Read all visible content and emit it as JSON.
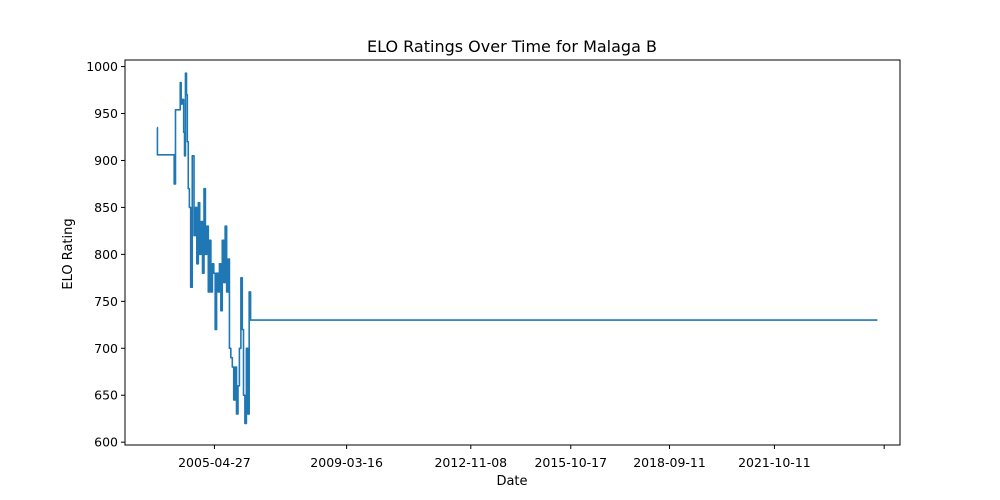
{
  "chart_data": {
    "type": "line",
    "title": "ELO Ratings Over Time for Malaga B",
    "xlabel": "Date",
    "ylabel": "ELO Rating",
    "x_tick_labels": [
      "2005-04-27",
      "2009-03-16",
      "2012-11-08",
      "2015-10-17",
      "2018-09-11",
      "2021-10-11",
      ""
    ],
    "x_tick_dates": [
      "2005-04-27",
      "2009-03-16",
      "2012-11-08",
      "2015-10-17",
      "2018-09-11",
      "2021-10-11",
      "2025-01-01"
    ],
    "y_ticks": [
      600,
      650,
      700,
      750,
      800,
      850,
      900,
      950,
      1000
    ],
    "xlim": [
      "2002-09-10",
      "2025-06-20"
    ],
    "ylim": [
      597,
      1007
    ],
    "grid": false,
    "series": [
      {
        "color": "#1f77b4",
        "step": true,
        "x": [
          "2003-08-20",
          "2003-08-24",
          "2004-02-10",
          "2004-02-20",
          "2004-03-05",
          "2004-04-15",
          "2004-04-25",
          "2004-05-05",
          "2004-05-15",
          "2004-06-01",
          "2004-06-10",
          "2004-06-20",
          "2004-07-01",
          "2004-07-10",
          "2004-07-20",
          "2004-08-01",
          "2004-08-15",
          "2004-09-01",
          "2004-09-20",
          "2004-10-05",
          "2004-10-20",
          "2004-11-05",
          "2004-11-20",
          "2004-12-05",
          "2004-12-20",
          "2005-01-05",
          "2005-01-20",
          "2005-02-05",
          "2005-02-20",
          "2005-03-05",
          "2005-03-20",
          "2005-04-05",
          "2005-04-20",
          "2005-05-05",
          "2005-05-20",
          "2005-06-05",
          "2005-06-20",
          "2005-07-05",
          "2005-07-20",
          "2005-08-05",
          "2005-08-20",
          "2005-09-05",
          "2005-09-20",
          "2005-10-05",
          "2005-10-20",
          "2005-11-05",
          "2005-11-20",
          "2005-12-05",
          "2005-12-20",
          "2006-01-05",
          "2006-01-20",
          "2006-02-05",
          "2006-02-20",
          "2006-03-05",
          "2006-03-20",
          "2006-04-05",
          "2006-04-20",
          "2006-05-05",
          "2006-05-20",
          "2006-06-05",
          "2006-06-20",
          "2006-07-05",
          "2006-07-20",
          "2006-08-05",
          "2006-08-20",
          "2006-09-05",
          "2006-09-20",
          "2006-10-05",
          "2006-10-20",
          "2006-11-05",
          "2006-11-20",
          "2006-12-05",
          "2006-12-20",
          "2007-01-05",
          "2007-01-15",
          "2007-01-25",
          "2007-02-05",
          "2007-02-10",
          "2007-02-20",
          "2007-03-01",
          "2007-03-10",
          "2024-10-20"
        ],
        "y": [
          935,
          906,
          906,
          875,
          954,
          954,
          983,
          960,
          965,
          930,
          905,
          993,
          970,
          920,
          870,
          850,
          765,
          905,
          820,
          850,
          790,
          855,
          800,
          835,
          780,
          870,
          800,
          830,
          760,
          815,
          760,
          790,
          780,
          720,
          780,
          760,
          790,
          740,
          815,
          770,
          830,
          760,
          795,
          700,
          690,
          680,
          645,
          680,
          630,
          660,
          700,
          775,
          720,
          650,
          620,
          700,
          630,
          760,
          730,
          730,
          730,
          730,
          730,
          730,
          730,
          730,
          730,
          730,
          730,
          730,
          730,
          730,
          730,
          730,
          730,
          730,
          730,
          730,
          730,
          730,
          730,
          730
        ]
      }
    ]
  }
}
